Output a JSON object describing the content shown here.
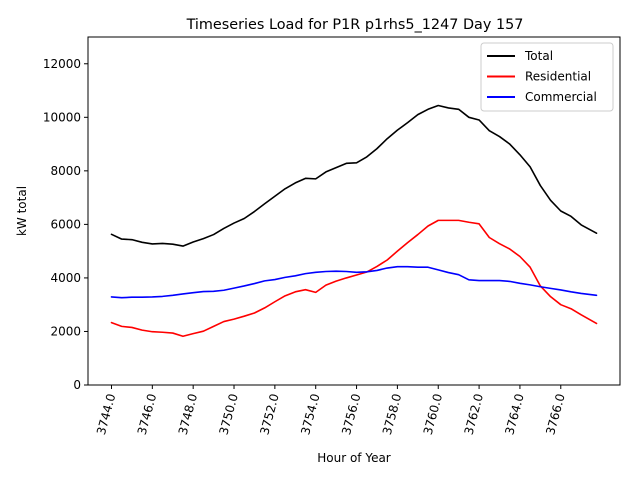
{
  "chart_data": {
    "type": "line",
    "title": "Timeseries Load for P1R p1rhs5_1247  Day 157",
    "xlabel": "Hour of Year",
    "ylabel": "kW total",
    "xlim": [
      3742.85,
      3768.9
    ],
    "ylim": [
      0,
      13000
    ],
    "xticks": [
      3744,
      3746,
      3748,
      3750,
      3752,
      3754,
      3756,
      3758,
      3760,
      3762,
      3764,
      3766
    ],
    "xtick_labels": [
      "3744.0",
      "3746.0",
      "3748.0",
      "3750.0",
      "3752.0",
      "3754.0",
      "3756.0",
      "3758.0",
      "3760.0",
      "3762.0",
      "3764.0",
      "3766.0"
    ],
    "yticks": [
      0,
      2000,
      4000,
      6000,
      8000,
      10000,
      12000
    ],
    "ytick_labels": [
      "0",
      "2000",
      "4000",
      "6000",
      "8000",
      "10000",
      "12000"
    ],
    "legend_position": "top-right",
    "grid": false,
    "x": [
      3744.0,
      3744.5,
      3745.0,
      3745.5,
      3746.0,
      3746.5,
      3747.0,
      3747.5,
      3748.0,
      3748.5,
      3749.0,
      3749.5,
      3750.0,
      3750.5,
      3751.0,
      3751.5,
      3752.0,
      3752.5,
      3753.0,
      3753.5,
      3754.0,
      3754.5,
      3755.0,
      3755.5,
      3756.0,
      3756.5,
      3757.0,
      3757.5,
      3758.0,
      3758.5,
      3759.0,
      3759.5,
      3760.0,
      3760.5,
      3761.0,
      3761.5,
      3762.0,
      3762.5,
      3763.0,
      3763.5,
      3764.0,
      3764.5,
      3765.0,
      3765.5,
      3766.0,
      3766.5,
      3767.0,
      3767.75
    ],
    "series": [
      {
        "name": "Total",
        "color": "#000000",
        "values": [
          5630,
          5450,
          5430,
          5330,
          5270,
          5290,
          5260,
          5190,
          5340,
          5470,
          5620,
          5850,
          6050,
          6220,
          6480,
          6770,
          7050,
          7330,
          7550,
          7720,
          7700,
          7960,
          8120,
          8280,
          8300,
          8520,
          8830,
          9200,
          9520,
          9800,
          10100,
          10300,
          10440,
          10350,
          10300,
          10000,
          9900,
          9500,
          9280,
          9000,
          8600,
          8150,
          7450,
          6900,
          6500,
          6300,
          5980,
          5670
        ]
      },
      {
        "name": "Residential",
        "color": "#ff0000",
        "values": [
          2330,
          2190,
          2150,
          2050,
          1990,
          1970,
          1940,
          1820,
          1920,
          2010,
          2190,
          2370,
          2460,
          2570,
          2690,
          2880,
          3110,
          3330,
          3480,
          3560,
          3460,
          3730,
          3880,
          4000,
          4110,
          4220,
          4430,
          4670,
          5000,
          5320,
          5620,
          5940,
          6150,
          6150,
          6150,
          6080,
          6020,
          5510,
          5280,
          5080,
          4800,
          4400,
          3700,
          3300,
          3000,
          2850,
          2620,
          2300
        ]
      },
      {
        "name": "Commercial",
        "color": "#0000ff",
        "values": [
          3290,
          3260,
          3280,
          3280,
          3290,
          3310,
          3350,
          3400,
          3450,
          3490,
          3500,
          3540,
          3620,
          3700,
          3790,
          3890,
          3940,
          4020,
          4080,
          4160,
          4210,
          4240,
          4250,
          4240,
          4210,
          4230,
          4280,
          4370,
          4420,
          4420,
          4400,
          4400,
          4300,
          4200,
          4120,
          3930,
          3900,
          3900,
          3900,
          3870,
          3800,
          3740,
          3670,
          3610,
          3550,
          3480,
          3420,
          3350
        ]
      }
    ]
  }
}
